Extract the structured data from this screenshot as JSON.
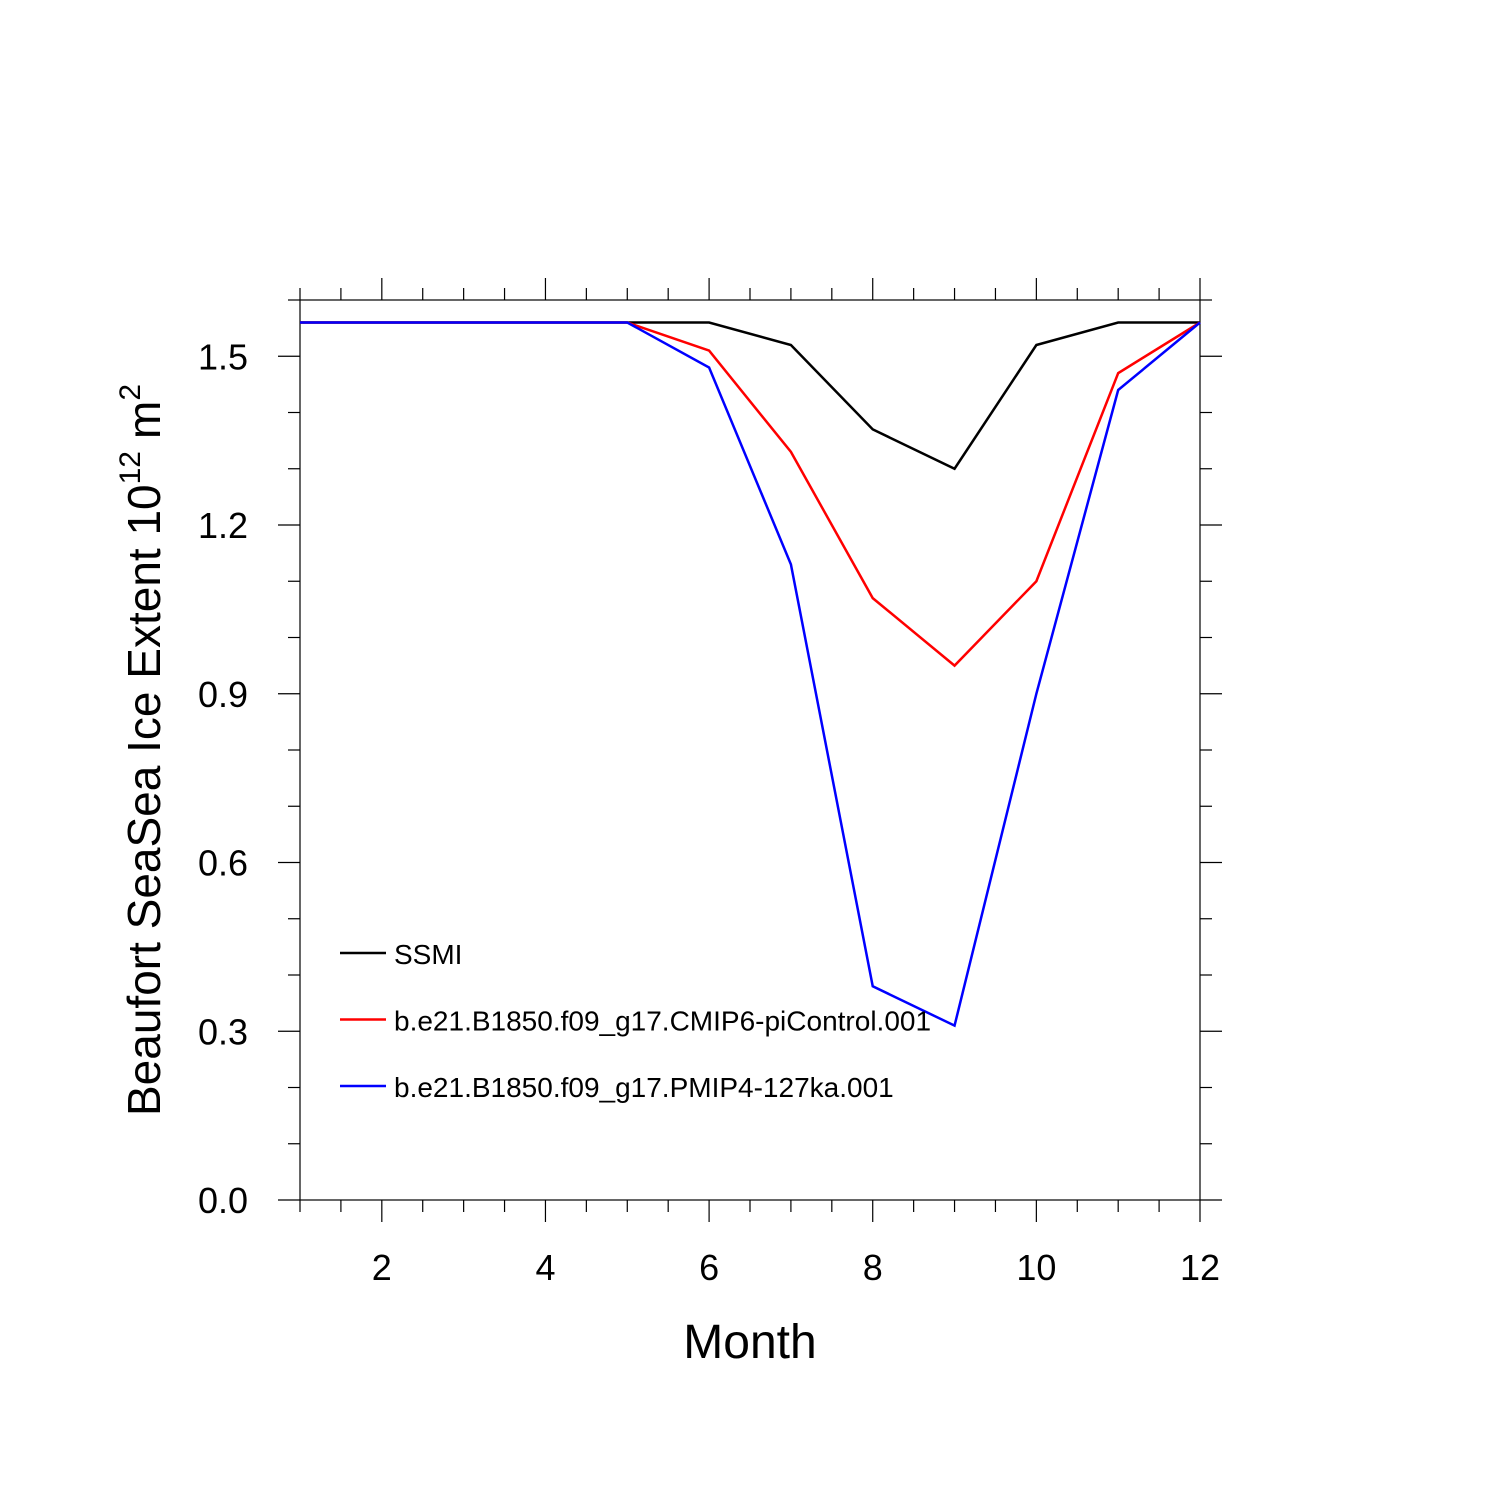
{
  "chart_data": {
    "type": "line",
    "xlabel": "Month",
    "ylabel": "Beaufort SeaSea Ice Extent 10",
    "ylabel_exponent": "12",
    "ylabel_unit": "m",
    "ylabel_unit_exponent": "2",
    "x": [
      1,
      2,
      3,
      4,
      5,
      6,
      7,
      8,
      9,
      10,
      11,
      12
    ],
    "series": [
      {
        "name": "SSMI",
        "color": "#000000",
        "values": [
          1.56,
          1.56,
          1.56,
          1.56,
          1.56,
          1.56,
          1.52,
          1.37,
          1.3,
          1.52,
          1.56,
          1.56
        ]
      },
      {
        "name": "b.e21.B1850.f09_g17.CMIP6-piControl.001",
        "color": "#ff0000",
        "values": [
          1.56,
          1.56,
          1.56,
          1.56,
          1.56,
          1.51,
          1.33,
          1.07,
          0.95,
          1.1,
          1.47,
          1.56
        ]
      },
      {
        "name": "b.e21.B1850.f09_g17.PMIP4-127ka.001",
        "color": "#0000ff",
        "values": [
          1.56,
          1.56,
          1.56,
          1.56,
          1.56,
          1.48,
          1.13,
          0.38,
          0.31,
          0.9,
          1.44,
          1.56
        ]
      }
    ],
    "xlim": [
      1,
      12
    ],
    "xticks": [
      2,
      4,
      6,
      8,
      10,
      12
    ],
    "xminorticks": [
      1,
      1.5,
      2.5,
      3,
      3.5,
      4.5,
      5,
      5.5,
      6.5,
      7,
      7.5,
      8.5,
      9,
      9.5,
      10.5,
      11,
      11.5
    ],
    "ylim": [
      0,
      1.6
    ],
    "yticks": [
      {
        "value": 0,
        "label": "0.0"
      },
      0.3,
      0.6,
      0.9,
      1.2,
      1.5
    ],
    "yminorticks": [
      0.1,
      0.2,
      0.4,
      0.5,
      0.7,
      0.8,
      1.0,
      1.1,
      1.3,
      1.4,
      1.6
    ],
    "legend": "lower-left"
  }
}
